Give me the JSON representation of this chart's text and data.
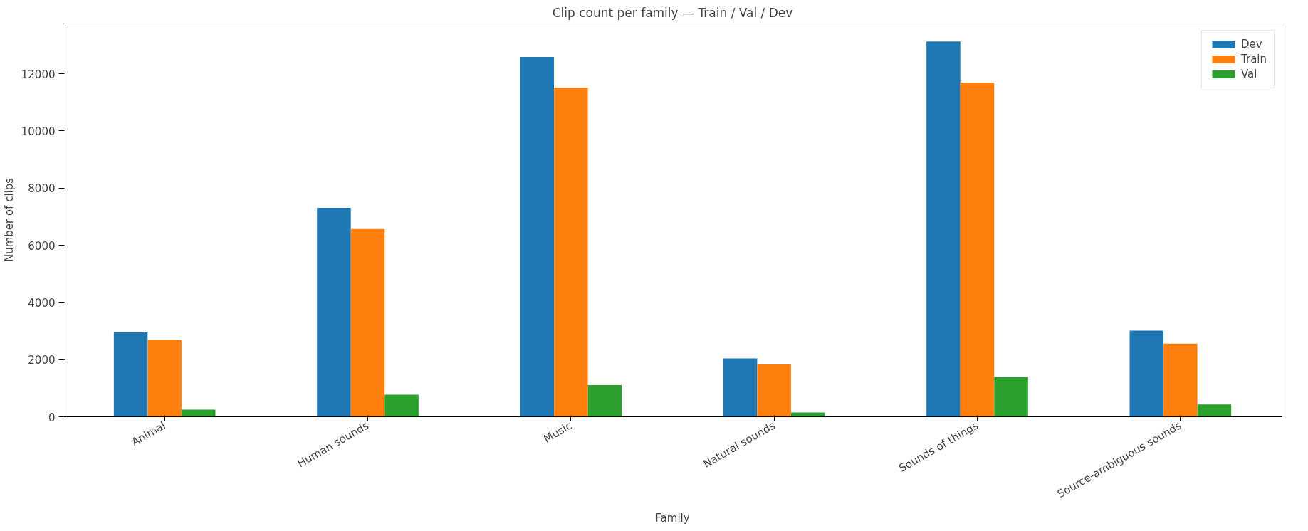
{
  "chart_data": {
    "type": "bar",
    "title": "Clip count per family — Train / Val / Dev",
    "xlabel": "Family",
    "ylabel": "Number of clips",
    "categories": [
      "Animal",
      "Human sounds",
      "Music",
      "Natural sounds",
      "Sounds of things",
      "Source-ambiguous sounds"
    ],
    "series": [
      {
        "name": "Dev",
        "color": "#1f77b4",
        "values": [
          2950,
          7310,
          12590,
          2040,
          13130,
          3010
        ]
      },
      {
        "name": "Train",
        "color": "#ff7f0e",
        "values": [
          2690,
          6570,
          11510,
          1830,
          11690,
          2560
        ]
      },
      {
        "name": "Val",
        "color": "#2ca02c",
        "values": [
          250,
          770,
          1110,
          150,
          1390,
          430
        ]
      }
    ],
    "ylim": [
      0,
      13770
    ],
    "yticks": [
      0,
      2000,
      4000,
      6000,
      8000,
      10000,
      12000
    ],
    "grid": false,
    "legend": "top right"
  }
}
